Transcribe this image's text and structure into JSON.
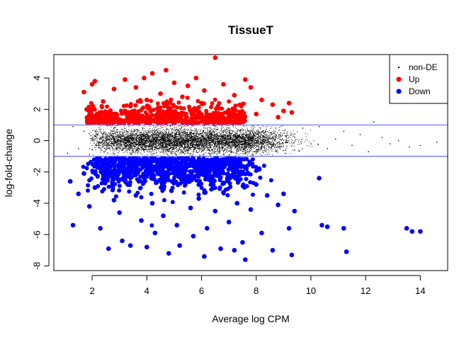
{
  "chart_data": {
    "type": "scatter",
    "title": "TissueT",
    "xlabel": "Average log CPM",
    "ylabel": "log-fold-change",
    "xlim": [
      0.6,
      15.0
    ],
    "ylim": [
      -8.3,
      5.5
    ],
    "xticks": [
      2,
      4,
      6,
      8,
      10,
      12,
      14
    ],
    "yticks": [
      -8,
      -6,
      -4,
      -2,
      0,
      2,
      4
    ],
    "grid": false,
    "legend_position": "top-right",
    "hlines": [
      1,
      -1
    ],
    "hline_color": "#6a6aff",
    "series": [
      {
        "name": "non-DE",
        "color": "#000000",
        "marker": "dot",
        "points": [
          [
            1.1,
            -0.8
          ],
          [
            1.3,
            0.9
          ],
          [
            1.5,
            -0.5
          ],
          [
            1.7,
            0.6
          ],
          [
            1.9,
            -0.9
          ],
          [
            2.2,
            0.4
          ],
          [
            2.5,
            -0.3
          ],
          [
            2.8,
            0.8
          ],
          [
            3.1,
            -0.6
          ],
          [
            3.4,
            0.2
          ],
          [
            3.7,
            -0.1
          ],
          [
            4.0,
            0.5
          ],
          [
            4.3,
            -0.4
          ],
          [
            4.6,
            0.1
          ],
          [
            4.9,
            -0.7
          ],
          [
            5.2,
            0.3
          ],
          [
            5.5,
            -0.2
          ],
          [
            5.8,
            0.7
          ],
          [
            6.1,
            -0.5
          ],
          [
            6.4,
            0.0
          ],
          [
            6.7,
            0.4
          ],
          [
            7.0,
            -0.3
          ],
          [
            7.3,
            0.6
          ],
          [
            7.6,
            -0.8
          ],
          [
            7.9,
            0.2
          ],
          [
            8.2,
            -0.4
          ],
          [
            8.5,
            0.5
          ],
          [
            8.8,
            -0.1
          ],
          [
            9.1,
            0.3
          ],
          [
            9.4,
            -0.6
          ],
          [
            9.7,
            0.8
          ],
          [
            10.0,
            -0.2
          ],
          [
            10.3,
            0.9
          ],
          [
            10.6,
            -0.5
          ],
          [
            10.9,
            0.1
          ],
          [
            11.2,
            0.6
          ],
          [
            11.5,
            -0.3
          ],
          [
            11.8,
            0.4
          ],
          [
            12.1,
            -0.7
          ],
          [
            12.3,
            1.2
          ],
          [
            12.6,
            0.2
          ],
          [
            12.9,
            -0.2
          ],
          [
            13.2,
            0.0
          ],
          [
            13.6,
            -0.4
          ],
          [
            14.0,
            -0.3
          ],
          [
            14.6,
            -0.1
          ]
        ]
      },
      {
        "name": "Up",
        "color": "#ff0000",
        "marker": "circle",
        "points": [
          [
            1.8,
            2.0
          ],
          [
            1.7,
            3.1
          ],
          [
            2.0,
            3.6
          ],
          [
            2.1,
            3.8
          ],
          [
            2.4,
            2.5
          ],
          [
            2.6,
            1.6
          ],
          [
            2.8,
            3.3
          ],
          [
            3.1,
            1.8
          ],
          [
            3.2,
            3.9
          ],
          [
            3.4,
            2.2
          ],
          [
            3.6,
            3.4
          ],
          [
            3.8,
            1.5
          ],
          [
            3.9,
            4.0
          ],
          [
            4.0,
            2.6
          ],
          [
            4.2,
            4.3
          ],
          [
            4.4,
            1.7
          ],
          [
            4.5,
            3.0
          ],
          [
            4.7,
            4.5
          ],
          [
            4.8,
            2.1
          ],
          [
            5.0,
            3.7
          ],
          [
            5.2,
            1.4
          ],
          [
            5.3,
            2.8
          ],
          [
            5.5,
            3.5
          ],
          [
            5.6,
            1.9
          ],
          [
            5.8,
            4.0
          ],
          [
            6.0,
            2.4
          ],
          [
            6.1,
            3.2
          ],
          [
            6.3,
            1.6
          ],
          [
            6.5,
            5.3
          ],
          [
            6.6,
            2.2
          ],
          [
            6.8,
            3.6
          ],
          [
            7.0,
            1.5
          ],
          [
            7.2,
            2.9
          ],
          [
            7.4,
            1.8
          ],
          [
            7.6,
            3.9
          ],
          [
            7.8,
            3.4
          ],
          [
            8.0,
            1.7
          ],
          [
            8.2,
            2.6
          ],
          [
            8.6,
            2.3
          ],
          [
            8.8,
            1.5
          ],
          [
            9.0,
            1.9
          ],
          [
            9.2,
            2.4
          ],
          [
            9.3,
            1.8
          ]
        ]
      },
      {
        "name": "Down",
        "color": "#0000ff",
        "marker": "circle",
        "points": [
          [
            1.2,
            -2.6
          ],
          [
            1.3,
            -5.4
          ],
          [
            1.5,
            -3.4
          ],
          [
            1.7,
            -2.1
          ],
          [
            1.9,
            -4.2
          ],
          [
            2.1,
            -3.0
          ],
          [
            2.3,
            -5.6
          ],
          [
            2.5,
            -2.3
          ],
          [
            2.6,
            -6.9
          ],
          [
            2.8,
            -3.8
          ],
          [
            3.0,
            -4.6
          ],
          [
            3.1,
            -6.4
          ],
          [
            3.3,
            -2.8
          ],
          [
            3.4,
            -6.7
          ],
          [
            3.6,
            -3.5
          ],
          [
            3.8,
            -5.1
          ],
          [
            3.9,
            -2.2
          ],
          [
            4.0,
            -6.8
          ],
          [
            4.2,
            -4.0
          ],
          [
            4.3,
            -5.9
          ],
          [
            4.5,
            -2.5
          ],
          [
            4.6,
            -4.8
          ],
          [
            4.8,
            -7.2
          ],
          [
            4.9,
            -3.2
          ],
          [
            5.1,
            -5.4
          ],
          [
            5.2,
            -6.7
          ],
          [
            5.4,
            -2.6
          ],
          [
            5.6,
            -4.3
          ],
          [
            5.7,
            -6.1
          ],
          [
            5.9,
            -3.7
          ],
          [
            6.1,
            -7.4
          ],
          [
            6.2,
            -5.6
          ],
          [
            6.4,
            -2.4
          ],
          [
            6.5,
            -4.5
          ],
          [
            6.7,
            -6.9
          ],
          [
            6.8,
            -3.3
          ],
          [
            7.0,
            -5.2
          ],
          [
            7.2,
            -7.0
          ],
          [
            7.3,
            -4.0
          ],
          [
            7.5,
            -6.5
          ],
          [
            7.6,
            -7.6
          ],
          [
            7.8,
            -4.4
          ],
          [
            8.0,
            -2.8
          ],
          [
            8.2,
            -5.9
          ],
          [
            8.4,
            -3.5
          ],
          [
            8.6,
            -7.0
          ],
          [
            8.8,
            -4.1
          ],
          [
            9.0,
            -3.4
          ],
          [
            9.2,
            -5.6
          ],
          [
            9.3,
            -7.3
          ],
          [
            9.4,
            -4.5
          ],
          [
            10.3,
            -2.4
          ],
          [
            10.4,
            -5.4
          ],
          [
            10.6,
            -5.5
          ],
          [
            11.2,
            -5.6
          ],
          [
            11.3,
            -7.1
          ],
          [
            13.5,
            -5.6
          ],
          [
            13.7,
            -5.8
          ],
          [
            14.0,
            -5.8
          ]
        ]
      }
    ]
  }
}
